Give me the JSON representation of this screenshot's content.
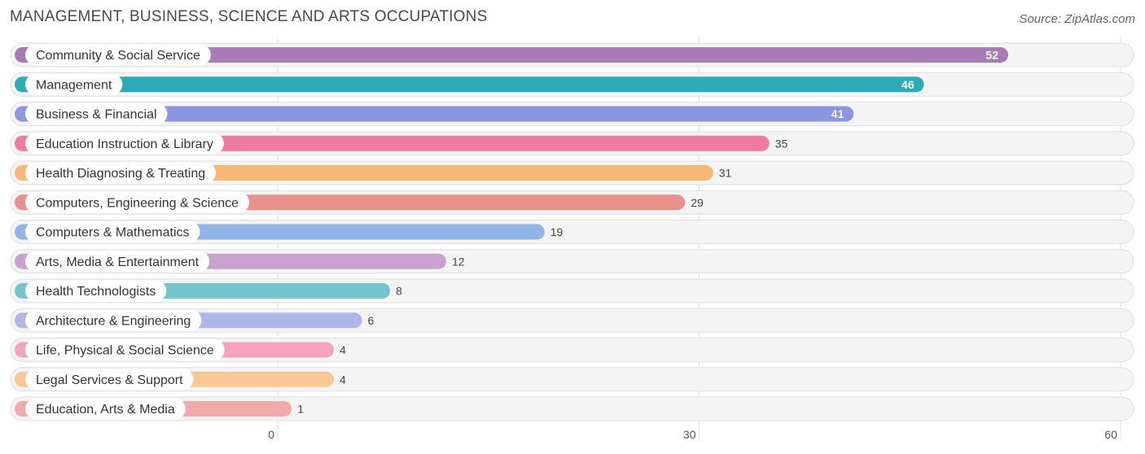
{
  "header": {
    "title": "MANAGEMENT, BUSINESS, SCIENCE AND ARTS OCCUPATIONS",
    "source": "Source: ZipAtlas.com"
  },
  "chart_data": {
    "type": "bar",
    "orientation": "horizontal",
    "title": "MANAGEMENT, BUSINESS, SCIENCE AND ARTS OCCUPATIONS",
    "xlabel": "",
    "ylabel": "",
    "xlim": [
      0,
      60
    ],
    "ticks": [
      0,
      30,
      60
    ],
    "grid": true,
    "categories": [
      "Community & Social Service",
      "Management",
      "Business & Financial",
      "Education Instruction & Library",
      "Health Diagnosing & Treating",
      "Computers, Engineering & Science",
      "Computers & Mathematics",
      "Arts, Media & Entertainment",
      "Health Technologists",
      "Architecture & Engineering",
      "Life, Physical & Social Science",
      "Legal Services & Support",
      "Education, Arts & Media"
    ],
    "values": [
      52,
      46,
      41,
      35,
      31,
      29,
      19,
      12,
      8,
      6,
      4,
      4,
      1
    ],
    "colors": [
      "#a97bb5",
      "#2eabbb",
      "#8a96e0",
      "#f07aa1",
      "#f8b776",
      "#e8908a",
      "#92b4e6",
      "#c7a3cb",
      "#72c5cc",
      "#aeb6ea",
      "#f5a2bf",
      "#f9c793",
      "#f0aaa9"
    ],
    "value_label_inside_threshold": 40
  }
}
